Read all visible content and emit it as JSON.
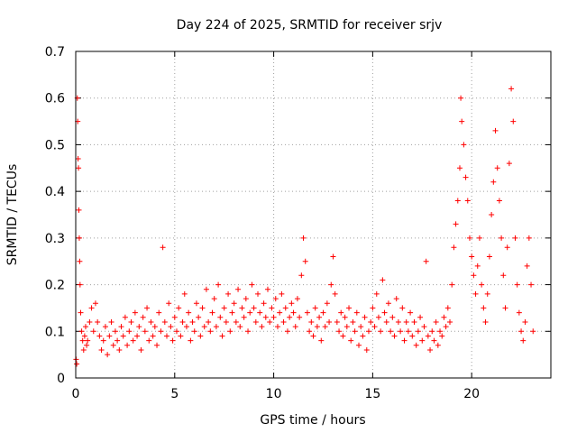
{
  "chart_data": {
    "type": "scatter",
    "title": "Day 224 of 2025, SRMTID for receiver srjv",
    "xlabel": "GPS time / hours",
    "ylabel": "SRMTID / TECUs",
    "xlim": [
      0,
      24
    ],
    "ylim": [
      0,
      0.7
    ],
    "xticks": [
      0,
      5,
      10,
      15,
      20
    ],
    "xtick_labels": [
      "0",
      "5",
      "10",
      "15",
      "20"
    ],
    "yticks": [
      0,
      0.1,
      0.2,
      0.3,
      0.4,
      0.5,
      0.6,
      0.7
    ],
    "ytick_labels": [
      "0",
      "0.1",
      "0.2",
      "0.3",
      "0.4",
      "0.5",
      "0.6",
      "0.7"
    ],
    "grid": true,
    "marker": "plus",
    "color": "#ff0000",
    "series": [
      {
        "name": "SRMTID",
        "points": [
          [
            0.02,
            0.04
          ],
          [
            0.05,
            0.03
          ],
          [
            0.08,
            0.6
          ],
          [
            0.1,
            0.55
          ],
          [
            0.12,
            0.47
          ],
          [
            0.14,
            0.45
          ],
          [
            0.16,
            0.36
          ],
          [
            0.18,
            0.3
          ],
          [
            0.2,
            0.25
          ],
          [
            0.22,
            0.2
          ],
          [
            0.25,
            0.14
          ],
          [
            0.3,
            0.1
          ],
          [
            0.35,
            0.08
          ],
          [
            0.4,
            0.06
          ],
          [
            0.45,
            0.09
          ],
          [
            0.5,
            0.11
          ],
          [
            0.55,
            0.07
          ],
          [
            0.6,
            0.08
          ],
          [
            0.7,
            0.12
          ],
          [
            0.8,
            0.15
          ],
          [
            0.9,
            0.1
          ],
          [
            1.0,
            0.16
          ],
          [
            1.1,
            0.12
          ],
          [
            1.2,
            0.09
          ],
          [
            1.3,
            0.06
          ],
          [
            1.4,
            0.08
          ],
          [
            1.5,
            0.11
          ],
          [
            1.6,
            0.05
          ],
          [
            1.7,
            0.09
          ],
          [
            1.8,
            0.12
          ],
          [
            1.9,
            0.07
          ],
          [
            2.0,
            0.1
          ],
          [
            2.1,
            0.08
          ],
          [
            2.2,
            0.06
          ],
          [
            2.3,
            0.11
          ],
          [
            2.4,
            0.09
          ],
          [
            2.5,
            0.13
          ],
          [
            2.6,
            0.07
          ],
          [
            2.7,
            0.1
          ],
          [
            2.8,
            0.12
          ],
          [
            2.9,
            0.08
          ],
          [
            3.0,
            0.14
          ],
          [
            3.1,
            0.09
          ],
          [
            3.2,
            0.11
          ],
          [
            3.3,
            0.06
          ],
          [
            3.4,
            0.13
          ],
          [
            3.5,
            0.1
          ],
          [
            3.6,
            0.15
          ],
          [
            3.7,
            0.08
          ],
          [
            3.8,
            0.12
          ],
          [
            3.9,
            0.09
          ],
          [
            4.0,
            0.11
          ],
          [
            4.1,
            0.07
          ],
          [
            4.2,
            0.14
          ],
          [
            4.3,
            0.1
          ],
          [
            4.4,
            0.28
          ],
          [
            4.5,
            0.12
          ],
          [
            4.6,
            0.09
          ],
          [
            4.7,
            0.16
          ],
          [
            4.8,
            0.11
          ],
          [
            4.9,
            0.08
          ],
          [
            5.0,
            0.13
          ],
          [
            5.1,
            0.1
          ],
          [
            5.2,
            0.15
          ],
          [
            5.3,
            0.09
          ],
          [
            5.4,
            0.12
          ],
          [
            5.5,
            0.18
          ],
          [
            5.6,
            0.11
          ],
          [
            5.7,
            0.14
          ],
          [
            5.8,
            0.08
          ],
          [
            5.9,
            0.12
          ],
          [
            6.0,
            0.1
          ],
          [
            6.1,
            0.16
          ],
          [
            6.2,
            0.13
          ],
          [
            6.3,
            0.09
          ],
          [
            6.4,
            0.15
          ],
          [
            6.5,
            0.11
          ],
          [
            6.6,
            0.19
          ],
          [
            6.7,
            0.12
          ],
          [
            6.8,
            0.1
          ],
          [
            6.9,
            0.14
          ],
          [
            7.0,
            0.17
          ],
          [
            7.1,
            0.11
          ],
          [
            7.2,
            0.2
          ],
          [
            7.3,
            0.13
          ],
          [
            7.4,
            0.09
          ],
          [
            7.5,
            0.15
          ],
          [
            7.6,
            0.12
          ],
          [
            7.7,
            0.18
          ],
          [
            7.8,
            0.1
          ],
          [
            7.9,
            0.14
          ],
          [
            8.0,
            0.16
          ],
          [
            8.1,
            0.12
          ],
          [
            8.2,
            0.19
          ],
          [
            8.3,
            0.11
          ],
          [
            8.4,
            0.15
          ],
          [
            8.5,
            0.13
          ],
          [
            8.6,
            0.17
          ],
          [
            8.7,
            0.1
          ],
          [
            8.8,
            0.14
          ],
          [
            8.9,
            0.2
          ],
          [
            9.0,
            0.15
          ],
          [
            9.1,
            0.12
          ],
          [
            9.2,
            0.18
          ],
          [
            9.3,
            0.14
          ],
          [
            9.4,
            0.11
          ],
          [
            9.5,
            0.16
          ],
          [
            9.6,
            0.13
          ],
          [
            9.7,
            0.19
          ],
          [
            9.8,
            0.12
          ],
          [
            9.9,
            0.15
          ],
          [
            10.0,
            0.13
          ],
          [
            10.1,
            0.17
          ],
          [
            10.2,
            0.11
          ],
          [
            10.3,
            0.14
          ],
          [
            10.4,
            0.18
          ],
          [
            10.5,
            0.12
          ],
          [
            10.6,
            0.15
          ],
          [
            10.7,
            0.1
          ],
          [
            10.8,
            0.13
          ],
          [
            10.9,
            0.16
          ],
          [
            11.0,
            0.14
          ],
          [
            11.1,
            0.11
          ],
          [
            11.2,
            0.17
          ],
          [
            11.3,
            0.13
          ],
          [
            11.4,
            0.22
          ],
          [
            11.5,
            0.3
          ],
          [
            11.6,
            0.25
          ],
          [
            11.7,
            0.14
          ],
          [
            11.8,
            0.1
          ],
          [
            11.9,
            0.12
          ],
          [
            12.0,
            0.09
          ],
          [
            12.1,
            0.15
          ],
          [
            12.2,
            0.11
          ],
          [
            12.3,
            0.13
          ],
          [
            12.4,
            0.08
          ],
          [
            12.5,
            0.14
          ],
          [
            12.6,
            0.11
          ],
          [
            12.7,
            0.16
          ],
          [
            12.8,
            0.12
          ],
          [
            12.9,
            0.2
          ],
          [
            13.0,
            0.26
          ],
          [
            13.1,
            0.18
          ],
          [
            13.2,
            0.12
          ],
          [
            13.3,
            0.1
          ],
          [
            13.4,
            0.14
          ],
          [
            13.5,
            0.09
          ],
          [
            13.6,
            0.13
          ],
          [
            13.7,
            0.11
          ],
          [
            13.8,
            0.15
          ],
          [
            13.9,
            0.08
          ],
          [
            14.0,
            0.12
          ],
          [
            14.1,
            0.1
          ],
          [
            14.2,
            0.14
          ],
          [
            14.3,
            0.07
          ],
          [
            14.4,
            0.11
          ],
          [
            14.5,
            0.09
          ],
          [
            14.6,
            0.13
          ],
          [
            14.7,
            0.06
          ],
          [
            14.8,
            0.1
          ],
          [
            14.9,
            0.12
          ],
          [
            15.0,
            0.15
          ],
          [
            15.1,
            0.11
          ],
          [
            15.2,
            0.18
          ],
          [
            15.3,
            0.13
          ],
          [
            15.4,
            0.1
          ],
          [
            15.5,
            0.21
          ],
          [
            15.6,
            0.14
          ],
          [
            15.7,
            0.12
          ],
          [
            15.8,
            0.16
          ],
          [
            15.9,
            0.1
          ],
          [
            16.0,
            0.13
          ],
          [
            16.1,
            0.09
          ],
          [
            16.2,
            0.17
          ],
          [
            16.3,
            0.12
          ],
          [
            16.4,
            0.1
          ],
          [
            16.5,
            0.15
          ],
          [
            16.6,
            0.08
          ],
          [
            16.7,
            0.12
          ],
          [
            16.8,
            0.1
          ],
          [
            16.9,
            0.14
          ],
          [
            17.0,
            0.09
          ],
          [
            17.1,
            0.12
          ],
          [
            17.2,
            0.07
          ],
          [
            17.3,
            0.1
          ],
          [
            17.4,
            0.13
          ],
          [
            17.5,
            0.08
          ],
          [
            17.6,
            0.11
          ],
          [
            17.7,
            0.25
          ],
          [
            17.8,
            0.09
          ],
          [
            17.9,
            0.06
          ],
          [
            18.0,
            0.1
          ],
          [
            18.1,
            0.08
          ],
          [
            18.2,
            0.12
          ],
          [
            18.3,
            0.07
          ],
          [
            18.4,
            0.1
          ],
          [
            18.5,
            0.09
          ],
          [
            18.6,
            0.13
          ],
          [
            18.7,
            0.11
          ],
          [
            18.8,
            0.15
          ],
          [
            18.9,
            0.12
          ],
          [
            19.0,
            0.2
          ],
          [
            19.1,
            0.28
          ],
          [
            19.2,
            0.33
          ],
          [
            19.3,
            0.38
          ],
          [
            19.4,
            0.45
          ],
          [
            19.45,
            0.6
          ],
          [
            19.5,
            0.55
          ],
          [
            19.6,
            0.5
          ],
          [
            19.7,
            0.43
          ],
          [
            19.8,
            0.38
          ],
          [
            19.9,
            0.3
          ],
          [
            20.0,
            0.26
          ],
          [
            20.1,
            0.22
          ],
          [
            20.2,
            0.18
          ],
          [
            20.3,
            0.24
          ],
          [
            20.4,
            0.3
          ],
          [
            20.5,
            0.2
          ],
          [
            20.6,
            0.15
          ],
          [
            20.7,
            0.12
          ],
          [
            20.8,
            0.18
          ],
          [
            20.9,
            0.26
          ],
          [
            21.0,
            0.35
          ],
          [
            21.1,
            0.42
          ],
          [
            21.2,
            0.53
          ],
          [
            21.3,
            0.45
          ],
          [
            21.4,
            0.38
          ],
          [
            21.5,
            0.3
          ],
          [
            21.6,
            0.22
          ],
          [
            21.7,
            0.15
          ],
          [
            21.8,
            0.28
          ],
          [
            21.9,
            0.46
          ],
          [
            22.0,
            0.62
          ],
          [
            22.1,
            0.55
          ],
          [
            22.2,
            0.3
          ],
          [
            22.3,
            0.2
          ],
          [
            22.4,
            0.14
          ],
          [
            22.5,
            0.1
          ],
          [
            22.6,
            0.08
          ],
          [
            22.7,
            0.12
          ],
          [
            22.8,
            0.24
          ],
          [
            22.9,
            0.3
          ],
          [
            23.0,
            0.2
          ],
          [
            23.1,
            0.1
          ]
        ]
      }
    ]
  }
}
